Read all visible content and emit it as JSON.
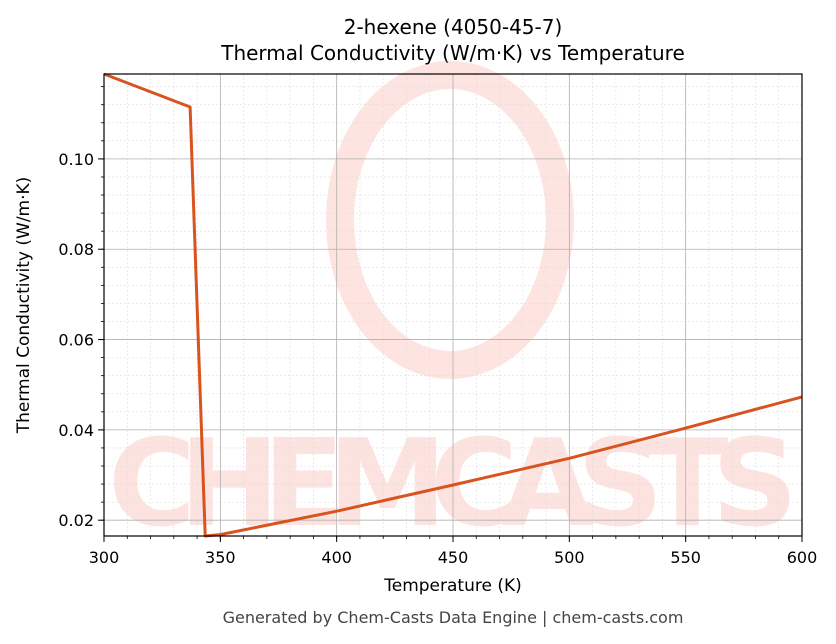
{
  "chart_data": {
    "type": "line",
    "title": "2-hexene (4050-45-7)",
    "subtitle": "Thermal Conductivity (W/m·K) vs Temperature",
    "xlabel": "Temperature (K)",
    "ylabel": "Thermal Conductivity (W/m·K)",
    "xlim": [
      300,
      600
    ],
    "ylim": [
      0.0165,
      0.1188
    ],
    "xticks": [
      300,
      350,
      400,
      450,
      500,
      550,
      600
    ],
    "yticks": [
      0.02,
      0.04,
      0.06,
      0.08,
      0.1
    ],
    "xtick_labels": [
      "300",
      "350",
      "400",
      "450",
      "500",
      "550",
      "600"
    ],
    "ytick_labels": [
      "0.02",
      "0.04",
      "0.06",
      "0.08",
      "0.10"
    ],
    "grid": true,
    "series": [
      {
        "name": "Thermal Conductivity",
        "color": "#d9531e",
        "x": [
          300,
          337,
          343.5,
          350,
          400,
          450,
          500,
          550,
          600
        ],
        "y": [
          0.1188,
          0.1115,
          0.0165,
          0.0168,
          0.022,
          0.0278,
          0.0337,
          0.0404,
          0.0473
        ]
      }
    ],
    "watermark": "CHEMCASTS"
  },
  "footer": "Generated by Chem-Casts Data Engine | chem-casts.com"
}
